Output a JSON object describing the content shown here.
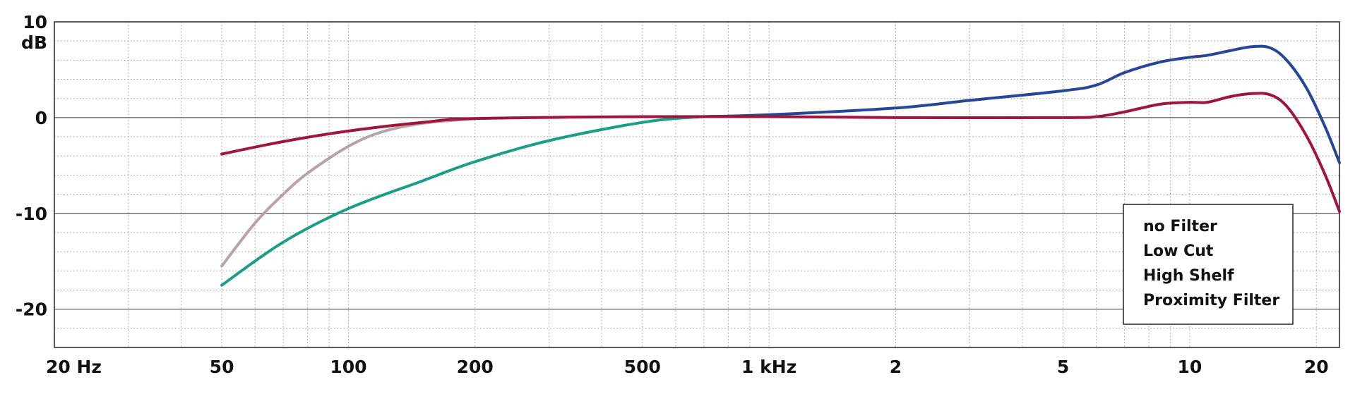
{
  "chart_data": {
    "type": "line",
    "ylabel": "dB",
    "xscale": "log",
    "xlim": [
      20,
      22700
    ],
    "ylim": [
      -24,
      10
    ],
    "xticks": [
      {
        "value": 20,
        "label": "20 Hz"
      },
      50,
      100,
      200,
      500,
      {
        "value": 1000,
        "label": "1 kHz"
      },
      {
        "value": 2000,
        "label": "2"
      },
      {
        "value": 5000,
        "label": "5"
      },
      {
        "value": 10000,
        "label": "10"
      },
      {
        "value": 20000,
        "label": "20"
      }
    ],
    "xminor": [
      30,
      40,
      60,
      70,
      80,
      90,
      300,
      400,
      600,
      700,
      800,
      900,
      3000,
      4000,
      6000,
      7000,
      8000,
      9000
    ],
    "yticks": [
      10,
      0,
      -10,
      -20
    ],
    "yminor": [
      8,
      6,
      4,
      2,
      -2,
      -4,
      -6,
      -8,
      -12,
      -14,
      -16,
      -18,
      -22
    ],
    "grid": true,
    "legend": "lower right",
    "series": [
      {
        "name": "Proximity Filter",
        "color": "#1a9e8a",
        "x": [
          50,
          70,
          100,
          150,
          200,
          300,
          500,
          700,
          900
        ],
        "values": [
          -17.5,
          -13,
          -9.5,
          -6.6,
          -4.6,
          -2.4,
          -0.5,
          0.1,
          0.1
        ]
      },
      {
        "name": "Low Cut",
        "color": "#b8a4a4",
        "x": [
          50,
          60,
          70,
          80,
          100,
          120,
          150,
          200
        ],
        "values": [
          -15.5,
          -11,
          -8,
          -5.8,
          -3,
          -1.5,
          -0.6,
          -0.1
        ]
      },
      {
        "name": "High Shelf",
        "color": "#24479a",
        "x": [
          700,
          1000,
          2000,
          3000,
          5000,
          6000,
          7000,
          8500,
          10000,
          11000,
          12500,
          14000,
          15500,
          17000,
          19000,
          21000,
          22700
        ],
        "values": [
          0.1,
          0.3,
          1.0,
          1.8,
          2.8,
          3.4,
          4.7,
          5.8,
          6.3,
          6.5,
          7.0,
          7.4,
          7.3,
          6.0,
          3.0,
          -1.0,
          -4.7
        ]
      },
      {
        "name": "no Filter",
        "color": "#a0153e",
        "x": [
          50,
          70,
          100,
          150,
          200,
          500,
          1000,
          2000,
          5000,
          6000,
          7000,
          8500,
          10000,
          11000,
          12500,
          14000,
          15500,
          17000,
          19000,
          21000,
          22700
        ],
        "values": [
          -3.8,
          -2.5,
          -1.4,
          -0.5,
          -0.1,
          0.1,
          0.1,
          0,
          0,
          0.1,
          0.6,
          1.4,
          1.6,
          1.6,
          2.2,
          2.5,
          2.4,
          1.2,
          -2,
          -6,
          -9.8
        ]
      }
    ]
  }
}
